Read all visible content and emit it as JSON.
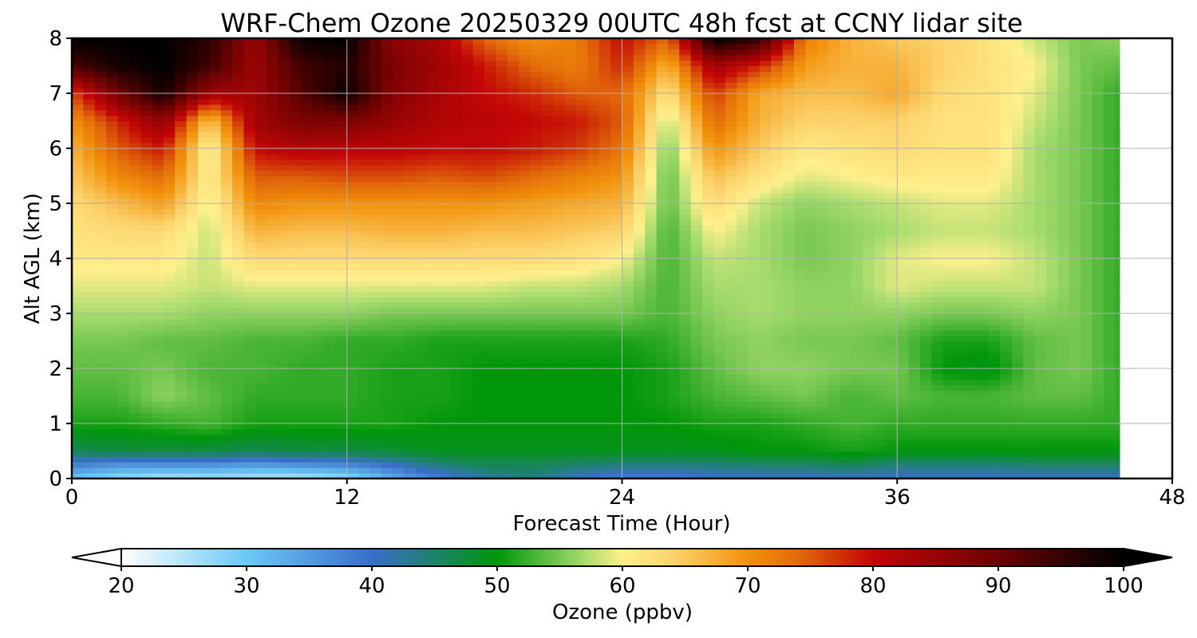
{
  "chart_data": {
    "type": "heatmap",
    "title": "WRF-Chem Ozone  20250329 00UTC 48h fcst at CCNY lidar site",
    "xlabel": "Forecast Time (Hour)",
    "ylabel": "Alt AGL (km)",
    "xlim": [
      0,
      48
    ],
    "ylim": [
      0,
      8
    ],
    "x_ticks": [
      0,
      12,
      24,
      36,
      48
    ],
    "y_ticks": [
      0,
      1,
      2,
      3,
      4,
      5,
      6,
      7,
      8
    ],
    "grid": true,
    "data_end_hour": 45.7,
    "colorbar": {
      "label": "Ozone  (ppbv)",
      "min": 20,
      "max": 100,
      "ticks": [
        20,
        30,
        40,
        50,
        60,
        70,
        80,
        90,
        100
      ],
      "extend": "both",
      "color_stops": [
        {
          "v": 20,
          "c": "#ffffff"
        },
        {
          "v": 30,
          "c": "#6cc8f5"
        },
        {
          "v": 40,
          "c": "#3a6fc9"
        },
        {
          "v": 50,
          "c": "#00960a"
        },
        {
          "v": 57,
          "c": "#a8dc6e"
        },
        {
          "v": 60,
          "c": "#fff08c"
        },
        {
          "v": 64,
          "c": "#fcd36c"
        },
        {
          "v": 70,
          "c": "#f2920c"
        },
        {
          "v": 74,
          "c": "#e26a0a"
        },
        {
          "v": 80,
          "c": "#c30606"
        },
        {
          "v": 90,
          "c": "#6b0202"
        },
        {
          "v": 100,
          "c": "#000000"
        }
      ]
    },
    "hours": [
      0,
      2,
      4,
      6,
      8,
      10,
      12,
      14,
      16,
      18,
      20,
      22,
      24,
      26,
      28,
      30,
      32,
      34,
      36,
      38,
      40,
      42,
      44,
      45.7
    ],
    "altitudes_km": [
      0,
      0.25,
      0.5,
      1,
      1.5,
      2,
      2.5,
      3,
      3.5,
      4,
      4.5,
      5,
      5.5,
      6,
      6.5,
      7,
      7.5,
      8
    ],
    "ozone_ppbv": [
      [
        30,
        27,
        25,
        26,
        25,
        25,
        27,
        33,
        38,
        42,
        44,
        40,
        38,
        38,
        40,
        40,
        40,
        40,
        40,
        40,
        40,
        40,
        40,
        40
      ],
      [
        38,
        36,
        36,
        36,
        35,
        36,
        37,
        40,
        44,
        46,
        46,
        45,
        44,
        44,
        44,
        45,
        45,
        46,
        44,
        44,
        44,
        45,
        45,
        45
      ],
      [
        46,
        47,
        47,
        47,
        46,
        47,
        47,
        48,
        49,
        49,
        49,
        49,
        49,
        49,
        49,
        50,
        50,
        51,
        50,
        50,
        50,
        50,
        50,
        50
      ],
      [
        51,
        51,
        52,
        53,
        51,
        51,
        51,
        51,
        50,
        50,
        50,
        50,
        50,
        50,
        51,
        51,
        52,
        53,
        52,
        52,
        52,
        52,
        52,
        52
      ],
      [
        53,
        53,
        56,
        54,
        52,
        52,
        52,
        51,
        51,
        50,
        50,
        50,
        50,
        51,
        53,
        54,
        55,
        53,
        54,
        53,
        53,
        54,
        54,
        52
      ],
      [
        54,
        54,
        55,
        53,
        53,
        52,
        52,
        51,
        51,
        50,
        50,
        50,
        50,
        51,
        54,
        56,
        56,
        55,
        55,
        50,
        49,
        54,
        55,
        52
      ],
      [
        55,
        55,
        54,
        54,
        53,
        53,
        52,
        52,
        51,
        51,
        51,
        51,
        51,
        52,
        55,
        56,
        55,
        55,
        54,
        51,
        51,
        54,
        55,
        52
      ],
      [
        57,
        57,
        57,
        56,
        56,
        56,
        56,
        55,
        55,
        55,
        55,
        55,
        55,
        53,
        56,
        57,
        56,
        56,
        56,
        55,
        55,
        56,
        55,
        52
      ],
      [
        59,
        59,
        59,
        58,
        59,
        59,
        59,
        59,
        59,
        59,
        58,
        58,
        57,
        53,
        57,
        57,
        56,
        56,
        59,
        58,
        58,
        58,
        55,
        52
      ],
      [
        61,
        61,
        61,
        58,
        63,
        63,
        63,
        63,
        63,
        63,
        63,
        62,
        60,
        53,
        58,
        57,
        55,
        56,
        59,
        60,
        60,
        58,
        55,
        52
      ],
      [
        62,
        63,
        63,
        58,
        67,
        66,
        66,
        67,
        67,
        66,
        66,
        65,
        64,
        53,
        60,
        57,
        55,
        56,
        57,
        58,
        58,
        57,
        55,
        52
      ],
      [
        63,
        66,
        69,
        59,
        71,
        70,
        70,
        70,
        70,
        70,
        69,
        68,
        67,
        54,
        63,
        58,
        56,
        57,
        58,
        59,
        59,
        57,
        55,
        52
      ],
      [
        65,
        71,
        74,
        60,
        75,
        75,
        76,
        76,
        75,
        76,
        74,
        72,
        70,
        54,
        66,
        62,
        59,
        60,
        61,
        61,
        61,
        57,
        55,
        52
      ],
      [
        67,
        75,
        79,
        59,
        80,
        82,
        81,
        81,
        80,
        80,
        79,
        77,
        73,
        55,
        70,
        65,
        61,
        62,
        63,
        62,
        62,
        57,
        55,
        52
      ],
      [
        70,
        78,
        86,
        65,
        84,
        88,
        88,
        85,
        82,
        81,
        80,
        79,
        75,
        57,
        74,
        67,
        64,
        64,
        64,
        62,
        62,
        58,
        55,
        52
      ],
      [
        76,
        89,
        98,
        84,
        84,
        92,
        99,
        87,
        83,
        80,
        78,
        75,
        74,
        62,
        77,
        68,
        66,
        66,
        68,
        63,
        62,
        59,
        55,
        52
      ],
      [
        93,
        98,
        100,
        94,
        84,
        94,
        97,
        88,
        84,
        79,
        74,
        72,
        78,
        67,
        84,
        78,
        69,
        67,
        67,
        64,
        62,
        60,
        55,
        54
      ],
      [
        100,
        100,
        100,
        96,
        85,
        99,
        100,
        86,
        83,
        74,
        70,
        72,
        80,
        74,
        100,
        96,
        72,
        67,
        65,
        64,
        62,
        58,
        55,
        56
      ]
    ]
  }
}
